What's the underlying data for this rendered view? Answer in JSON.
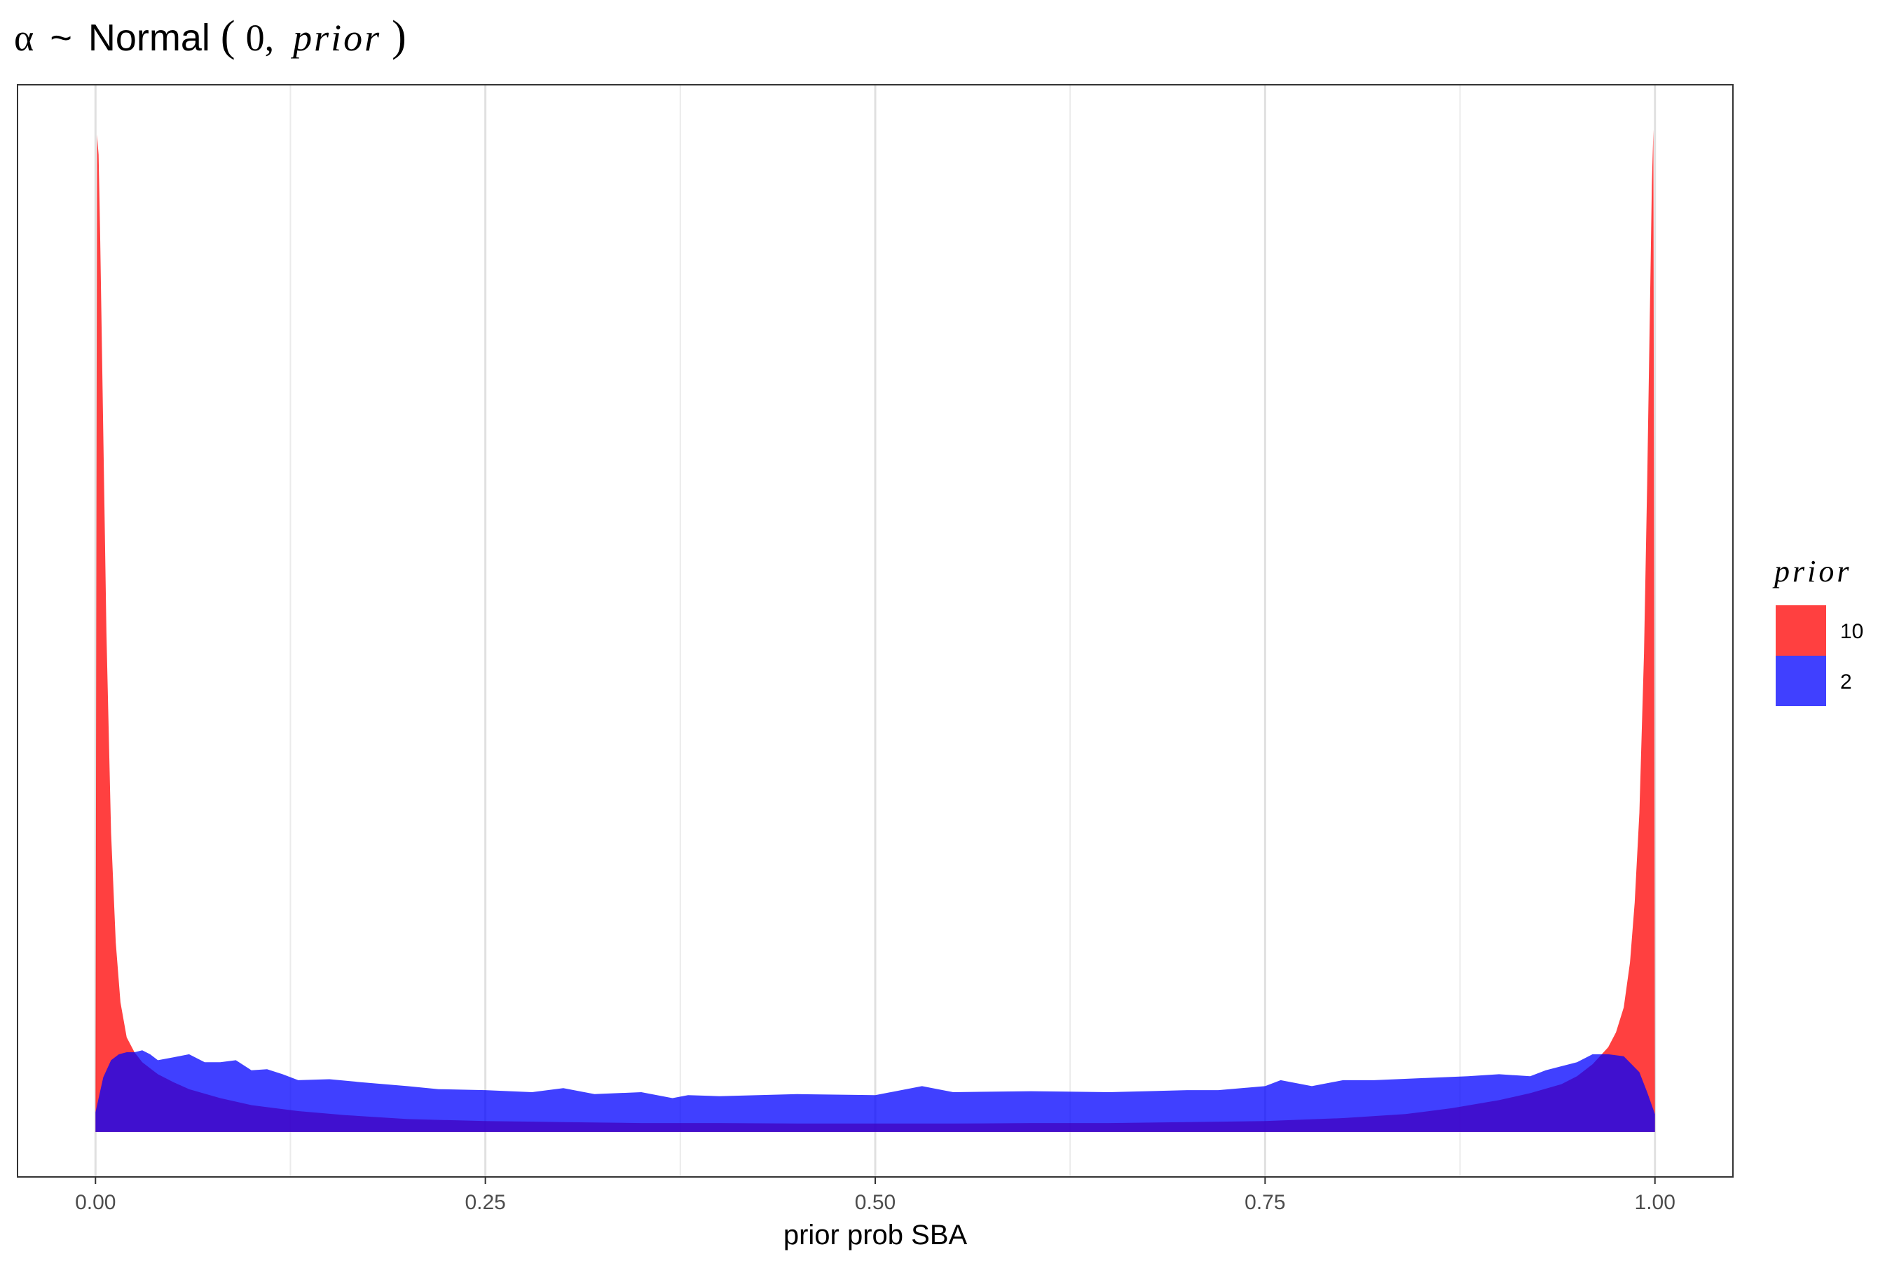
{
  "chart_data": {
    "type": "area",
    "title_parts": {
      "symbol": "α",
      "tilde": "~",
      "func": "Normal",
      "open": "(",
      "arg": "0,",
      "param": "prior",
      "close": ")"
    },
    "xlabel": "prior prob SBA",
    "ylabel": "",
    "xlim": [
      -0.05,
      1.05
    ],
    "ylim": [
      -0.045,
      1.05
    ],
    "x_ticks": [
      0,
      0.25,
      0.5,
      0.75,
      1
    ],
    "x_tick_labels": [
      "0.00",
      "0.25",
      "0.50",
      "0.75",
      "1.00"
    ],
    "x_minor_ticks": [
      0.125,
      0.375,
      0.625,
      0.875
    ],
    "y_axis_visible": false,
    "grid": "vertical",
    "legend": {
      "title": "prior",
      "position": "right",
      "entries": [
        {
          "label": "10",
          "color": "#ff0000"
        },
        {
          "label": "2",
          "color": "#0000ff"
        }
      ]
    },
    "series": [
      {
        "name": "10",
        "color": "#ff0000",
        "opacity": 0.75,
        "x": [
          0,
          0.001,
          0.002,
          0.003,
          0.005,
          0.007,
          0.01,
          0.013,
          0.016,
          0.02,
          0.025,
          0.03,
          0.04,
          0.05,
          0.06,
          0.08,
          0.1,
          0.13,
          0.16,
          0.2,
          0.25,
          0.3,
          0.35,
          0.4,
          0.45,
          0.5,
          0.55,
          0.6,
          0.65,
          0.7,
          0.75,
          0.8,
          0.84,
          0.87,
          0.9,
          0.92,
          0.94,
          0.95,
          0.96,
          0.97,
          0.975,
          0.98,
          0.984,
          0.987,
          0.99,
          0.993,
          0.995,
          0.997,
          0.998,
          0.999,
          1
        ],
        "y": [
          0.02,
          1.0,
          0.98,
          0.9,
          0.7,
          0.5,
          0.3,
          0.19,
          0.13,
          0.095,
          0.08,
          0.07,
          0.058,
          0.05,
          0.043,
          0.034,
          0.027,
          0.021,
          0.017,
          0.013,
          0.011,
          0.01,
          0.009,
          0.009,
          0.0085,
          0.0085,
          0.0085,
          0.009,
          0.009,
          0.01,
          0.011,
          0.014,
          0.018,
          0.024,
          0.032,
          0.039,
          0.048,
          0.056,
          0.068,
          0.085,
          0.1,
          0.125,
          0.17,
          0.23,
          0.32,
          0.48,
          0.65,
          0.85,
          0.95,
          1.005,
          0.02
        ]
      },
      {
        "name": "2",
        "color": "#0000ff",
        "opacity": 0.75,
        "x": [
          0,
          0.005,
          0.01,
          0.015,
          0.02,
          0.025,
          0.03,
          0.035,
          0.04,
          0.05,
          0.06,
          0.07,
          0.08,
          0.09,
          0.1,
          0.11,
          0.12,
          0.13,
          0.15,
          0.17,
          0.2,
          0.22,
          0.25,
          0.28,
          0.3,
          0.32,
          0.35,
          0.37,
          0.38,
          0.4,
          0.45,
          0.5,
          0.53,
          0.55,
          0.6,
          0.65,
          0.7,
          0.72,
          0.75,
          0.76,
          0.78,
          0.8,
          0.82,
          0.85,
          0.88,
          0.9,
          0.92,
          0.93,
          0.95,
          0.96,
          0.97,
          0.98,
          0.99,
          0.995,
          1
        ],
        "y": [
          0.02,
          0.055,
          0.072,
          0.078,
          0.08,
          0.08,
          0.082,
          0.078,
          0.072,
          0.075,
          0.078,
          0.07,
          0.07,
          0.072,
          0.062,
          0.063,
          0.058,
          0.052,
          0.053,
          0.05,
          0.046,
          0.043,
          0.042,
          0.04,
          0.044,
          0.038,
          0.04,
          0.034,
          0.037,
          0.036,
          0.038,
          0.037,
          0.046,
          0.04,
          0.041,
          0.04,
          0.042,
          0.042,
          0.046,
          0.052,
          0.046,
          0.052,
          0.052,
          0.054,
          0.056,
          0.058,
          0.056,
          0.062,
          0.07,
          0.078,
          0.078,
          0.076,
          0.06,
          0.04,
          0.018
        ]
      }
    ]
  }
}
